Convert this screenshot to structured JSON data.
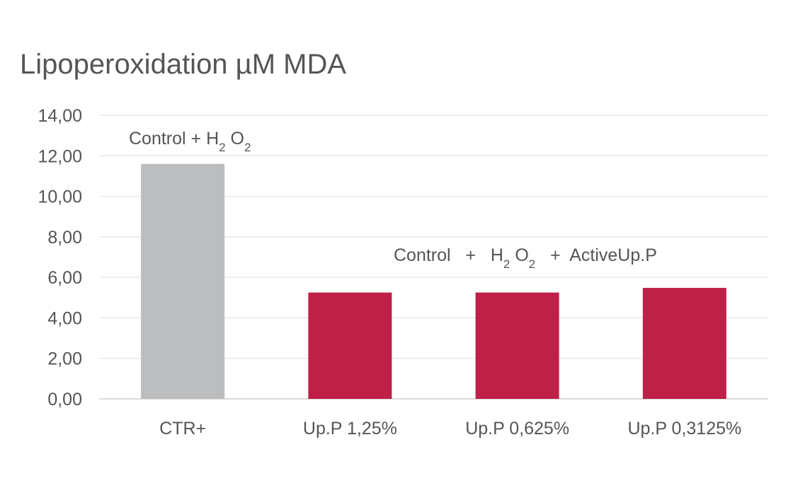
{
  "chart_data": {
    "type": "bar",
    "title": "Lipoperoxidation µM MDA",
    "xlabel": "",
    "ylabel": "",
    "categories": [
      "CTR+",
      "Up.P 1,25%",
      "Up.P 0,625%",
      "Up.P 0,3125%"
    ],
    "values": [
      11.6,
      5.25,
      5.25,
      5.48
    ],
    "ylim": [
      0,
      14
    ],
    "yticks": [
      "0,00",
      "2,00",
      "4,00",
      "6,00",
      "8,00",
      "10,00",
      "12,00",
      "14,00"
    ],
    "grid": true,
    "legend": "none",
    "colors": {
      "control": "#bcbdbf",
      "treatment": "#bf2047",
      "text": "#555555",
      "grid": "#e3e3e3"
    },
    "bar_color_groups": [
      "control",
      "treatment",
      "treatment",
      "treatment"
    ],
    "annotations": {
      "control": {
        "text": "Control + H",
        "sub1": "2",
        "text2": " O",
        "sub2": "2"
      },
      "treatment": {
        "text": "Control   +   H",
        "sub1": "2",
        "text2": " O",
        "sub2": "2",
        "text3": "   +  ActiveUp.P"
      }
    }
  }
}
